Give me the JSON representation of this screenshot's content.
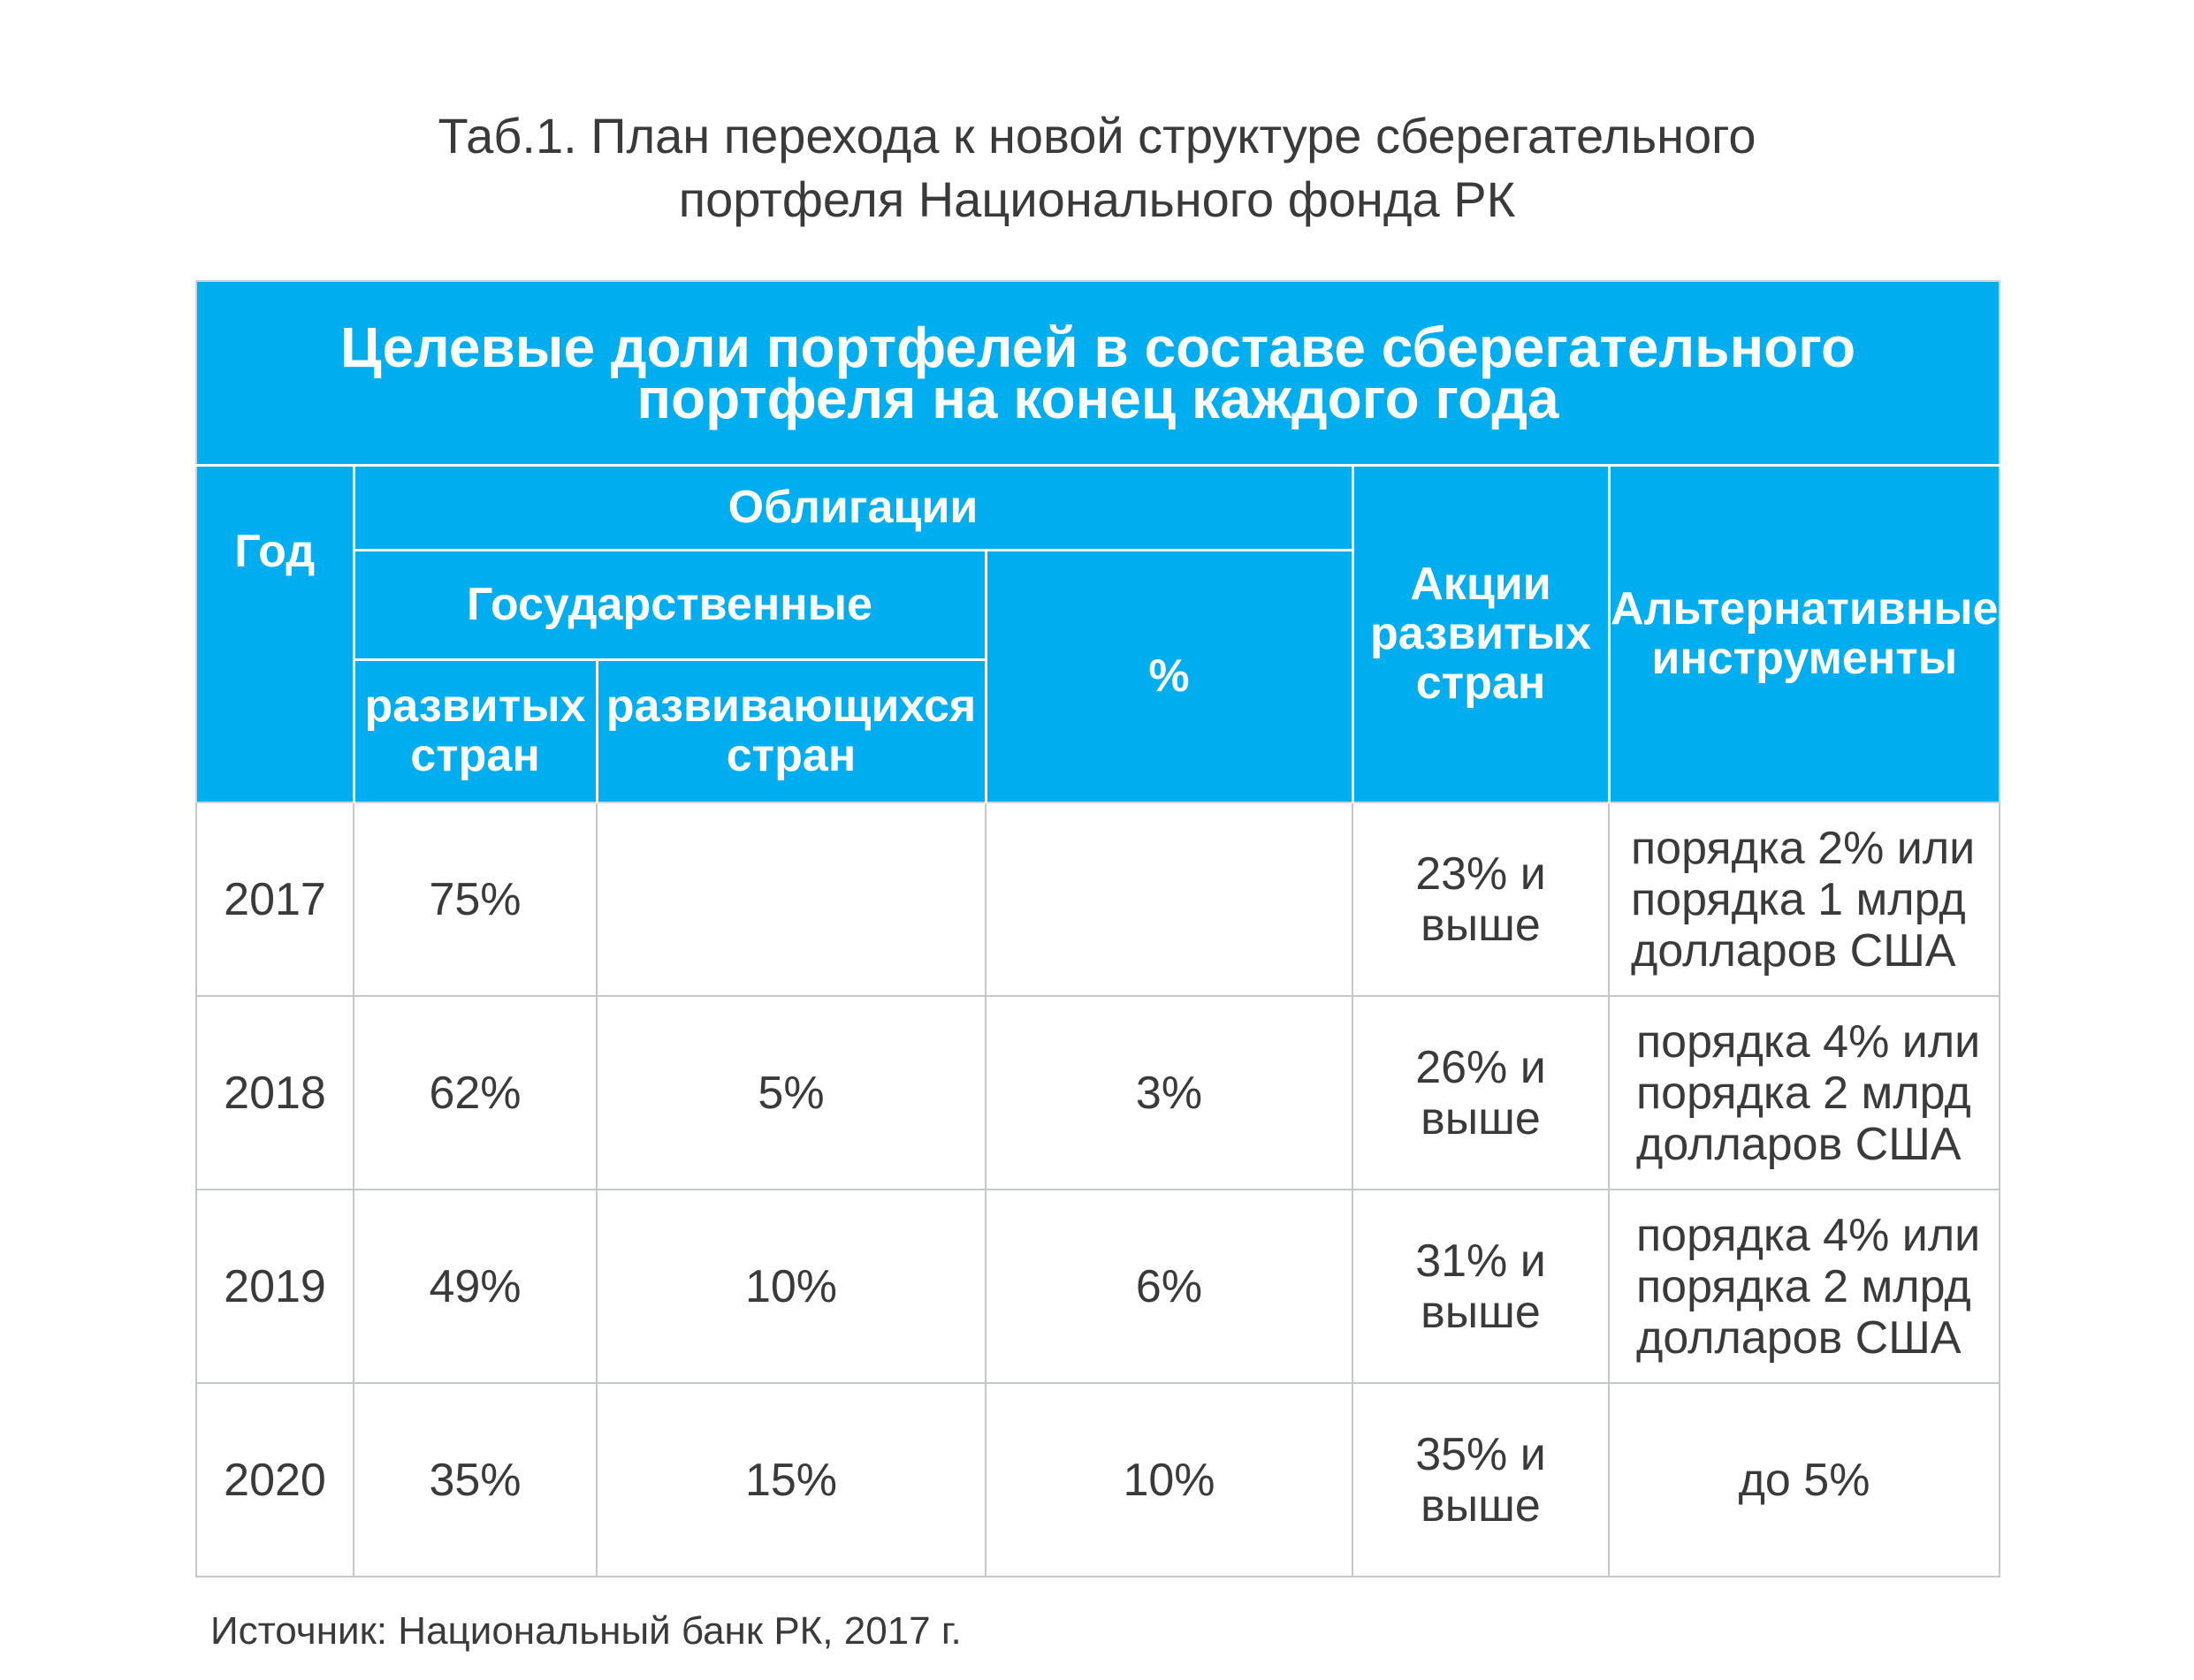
{
  "caption": {
    "line1": "Таб.1. План перехода к новой структуре сберегательного",
    "line2": "портфеля Национального фонда РК"
  },
  "table": {
    "title_line1": "Целевые доли портфелей в составе сберегательного",
    "title_line2": "портфеля на конец каждого года",
    "headers": {
      "year": "Год",
      "bonds": "Облигации",
      "government": "Государственные",
      "developed_line1": "развитых",
      "developed_line2": "стран",
      "developing_line1": "развивающихся",
      "developing_line2": "стран",
      "percent": "%",
      "stocks_line1": "Акции",
      "stocks_line2": "развитых",
      "stocks_line3": "стран",
      "alternative_line1": "Альтернативные",
      "alternative_line2": "инструменты"
    },
    "rows": [
      {
        "year": "2017",
        "developed": "75%",
        "developing": "",
        "percent": "",
        "stocks_line1": "23% и",
        "stocks_line2": "выше",
        "alt_line1": "порядка  2% или",
        "alt_line2": "порядка 1 млрд",
        "alt_line3": "долларов США"
      },
      {
        "year": "2018",
        "developed": "62%",
        "developing": "5%",
        "percent": "3%",
        "stocks_line1": "26% и",
        "stocks_line2": "выше",
        "alt_line1": "порядка 4% или",
        "alt_line2": "порядка 2 млрд",
        "alt_line3": "долларов США"
      },
      {
        "year": "2019",
        "developed": "49%",
        "developing": "10%",
        "percent": "6%",
        "stocks_line1": "31% и",
        "stocks_line2": "выше",
        "alt_line1": "порядка 4% или",
        "alt_line2": "порядка 2 млрд",
        "alt_line3": "долларов США"
      },
      {
        "year": "2020",
        "developed": "35%",
        "developing": "15%",
        "percent": "10%",
        "stocks_line1": "35% и",
        "stocks_line2": "выше",
        "alt_line1": "до 5%"
      }
    ]
  },
  "source": "Источник: Национальный банк РК, 2017 г.",
  "colors": {
    "header_bg": "#00aeef",
    "header_text": "#ffffff",
    "body_text": "#3a3a3a",
    "grid": "#c4c8cb"
  }
}
